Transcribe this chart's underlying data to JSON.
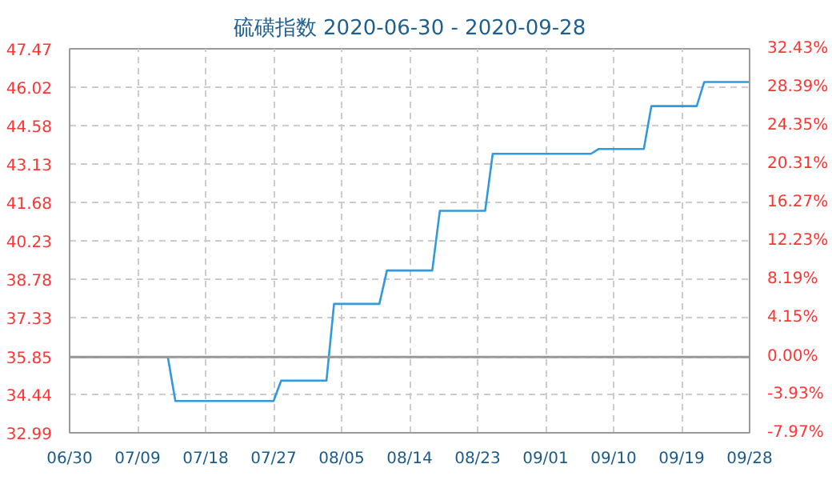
{
  "chart_data": {
    "type": "line",
    "title": "硫磺指数 2020-06-30 - 2020-09-28",
    "x": [
      "2020-06-30",
      "2020-07-13",
      "2020-07-14",
      "2020-07-27",
      "2020-07-28",
      "2020-08-03",
      "2020-08-04",
      "2020-08-10",
      "2020-08-11",
      "2020-08-17",
      "2020-08-18",
      "2020-08-24",
      "2020-08-25",
      "2020-09-07",
      "2020-09-08",
      "2020-09-14",
      "2020-09-15",
      "2020-09-21",
      "2020-09-22",
      "2020-09-28"
    ],
    "series": [
      {
        "color": "#3399dd",
        "values": [
          35.85,
          35.85,
          34.19,
          34.19,
          34.96,
          34.96,
          37.85,
          37.85,
          39.11,
          39.11,
          41.36,
          41.36,
          43.51,
          43.51,
          43.69,
          43.69,
          45.31,
          45.31,
          46.22,
          46.22
        ]
      }
    ],
    "xlim": [
      "2020-06-30",
      "2020-09-28"
    ],
    "xticks": [
      {
        "value": "2020-06-30",
        "label": "06/30"
      },
      {
        "value": "2020-07-09",
        "label": "07/09"
      },
      {
        "value": "2020-07-18",
        "label": "07/18"
      },
      {
        "value": "2020-07-27",
        "label": "07/27"
      },
      {
        "value": "2020-08-05",
        "label": "08/05"
      },
      {
        "value": "2020-08-14",
        "label": "08/14"
      },
      {
        "value": "2020-08-23",
        "label": "08/23"
      },
      {
        "value": "2020-09-01",
        "label": "09/01"
      },
      {
        "value": "2020-09-10",
        "label": "09/10"
      },
      {
        "value": "2020-09-19",
        "label": "09/19"
      },
      {
        "value": "2020-09-28",
        "label": "09/28"
      }
    ],
    "ylim": [
      32.99,
      47.47
    ],
    "yticks": [
      32.99,
      34.44,
      35.85,
      37.33,
      38.78,
      40.23,
      41.68,
      43.13,
      44.58,
      46.02,
      47.47
    ],
    "y2lim": [
      -7.97,
      32.43
    ],
    "y2ticks": [
      {
        "value": -7.97,
        "label": "-7.97%"
      },
      {
        "value": -3.93,
        "label": "-3.93%"
      },
      {
        "value": 0,
        "label": "0.00%"
      },
      {
        "value": 4.15,
        "label": "4.15%"
      },
      {
        "value": 8.19,
        "label": "8.19%"
      },
      {
        "value": 12.23,
        "label": "12.23%"
      },
      {
        "value": 16.27,
        "label": "16.27%"
      },
      {
        "value": 20.31,
        "label": "20.31%"
      },
      {
        "value": 24.35,
        "label": "24.35%"
      },
      {
        "value": 28.39,
        "label": "28.39%"
      },
      {
        "value": 32.43,
        "label": "32.43%"
      }
    ],
    "ref_lines": [
      {
        "axis": "y",
        "value": 35.85,
        "color": "#999999"
      }
    ],
    "grid": true,
    "line_style": "solid",
    "marker": "none"
  }
}
